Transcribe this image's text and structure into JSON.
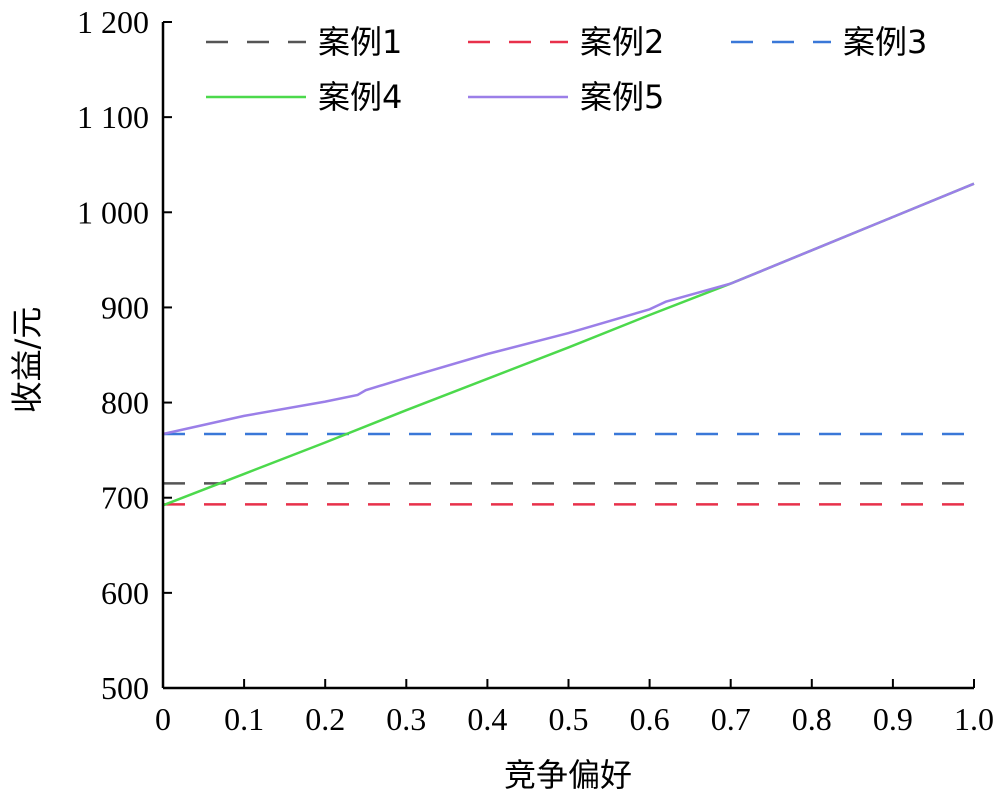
{
  "chart_data": {
    "type": "line",
    "title": "",
    "xlabel": "竞争偏好",
    "ylabel": "收益/元",
    "xlim": [
      0,
      1.0
    ],
    "ylim": [
      500,
      1200
    ],
    "x_ticks": [
      0,
      0.1,
      0.2,
      0.3,
      0.4,
      0.5,
      0.6,
      0.7,
      0.8,
      0.9,
      1.0
    ],
    "x_tick_labels": [
      "0",
      "0.1",
      "0.2",
      "0.3",
      "0.4",
      "0.5",
      "0.6",
      "0.7",
      "0.8",
      "0.9",
      "1.0"
    ],
    "y_ticks": [
      500,
      600,
      700,
      800,
      900,
      1000,
      1100,
      1200
    ],
    "y_tick_labels": [
      "500",
      "600",
      "700",
      "800",
      "900",
      "1 000",
      "1 100",
      "1 200"
    ],
    "grid": false,
    "legend_position": "top",
    "series": [
      {
        "name": "案例1",
        "color": "#555555",
        "dash": true,
        "x": [
          0,
          1.0
        ],
        "y": [
          715,
          715
        ]
      },
      {
        "name": "案例2",
        "color": "#e8304a",
        "dash": true,
        "x": [
          0,
          1.0
        ],
        "y": [
          693,
          693
        ]
      },
      {
        "name": "案例3",
        "color": "#3a78d8",
        "dash": true,
        "x": [
          0,
          1.0
        ],
        "y": [
          767,
          767
        ]
      },
      {
        "name": "案例4",
        "color": "#4cd94c",
        "dash": false,
        "x": [
          0,
          0.1,
          0.2,
          0.3,
          0.4,
          0.5,
          0.6,
          0.7,
          0.8,
          0.9,
          1.0
        ],
        "y": [
          692,
          725,
          758,
          792,
          825,
          858,
          892,
          925,
          960,
          995,
          1030
        ]
      },
      {
        "name": "案例5",
        "color": "#9b7fe8",
        "dash": false,
        "x": [
          0,
          0.1,
          0.2,
          0.24,
          0.25,
          0.3,
          0.4,
          0.5,
          0.6,
          0.61,
          0.62,
          0.7,
          0.8,
          0.9,
          1.0
        ],
        "y": [
          767,
          786,
          801,
          808,
          813,
          826,
          851,
          873,
          898,
          902,
          906,
          925,
          960,
          995,
          1030
        ]
      }
    ]
  }
}
